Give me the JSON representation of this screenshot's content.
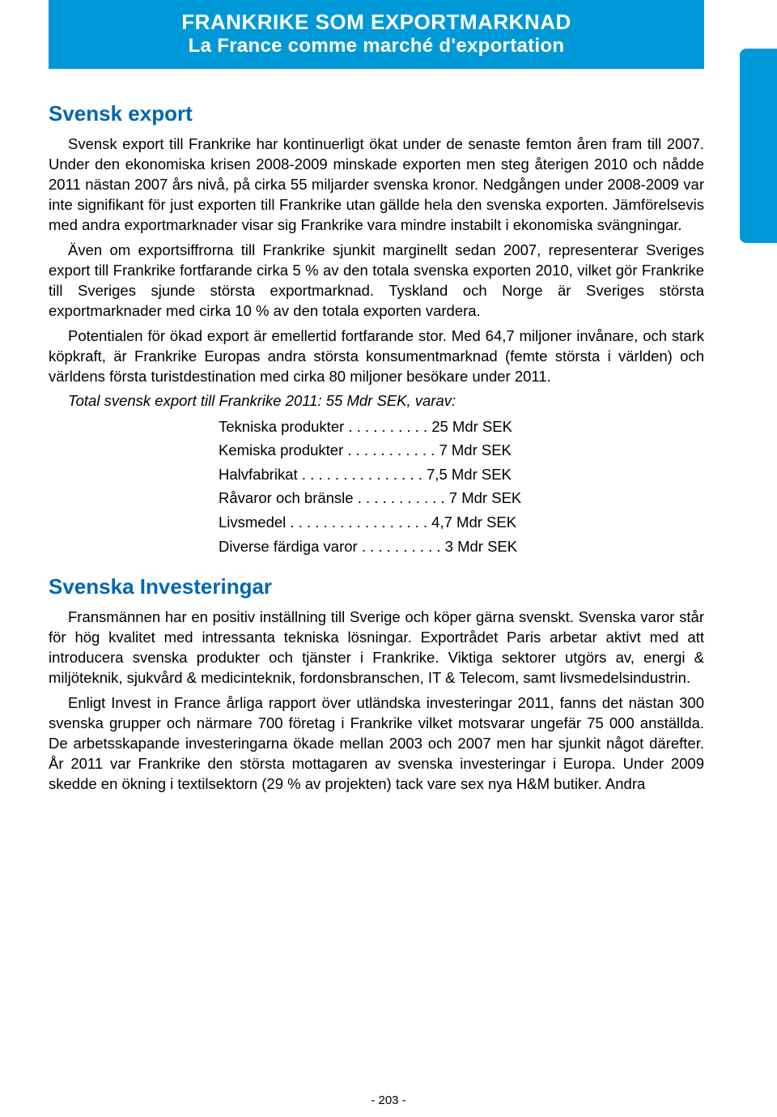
{
  "banner": {
    "title": "FRANKRIKE SOM EXPORTMARKNAD",
    "subtitle": "La France comme marché d'exportation"
  },
  "section1": {
    "heading": "Svensk export",
    "p1": "Svensk export till Frankrike har kontinuerligt ökat under de senaste femton åren fram till 2007. Under den ekonomiska krisen 2008-2009 minskade exporten men steg återigen 2010 och nådde 2011 nästan 2007 års nivå, på cirka 55 miljarder svenska kronor. Nedgången under 2008-2009 var inte signifikant för just exporten till Frankrike utan gällde hela den svenska exporten. Jämförelsevis med andra exportmarknader visar sig Frankrike vara mindre instabilt i ekonomiska svängningar.",
    "p2": "Även om exportsiffrorna till Frankrike sjunkit marginellt sedan 2007, representerar Sveriges export till Frankrike fortfarande cirka 5 % av den totala svenska exporten 2010, vilket gör Frankrike till Sveriges sjunde största exportmarknad. Tyskland och Norge är Sveriges största exportmarknader med cirka 10 % av den totala exporten vardera.",
    "p3": "Potentialen för ökad export är emellertid fortfarande stor. Med 64,7 miljoner invånare, och stark köpkraft, är Frankrike Europas andra största konsumentmarknad (femte största i världen) och världens första turistdestination med cirka 80 miljoner besökare under 2011.",
    "italic": "Total svensk export till Frankrike 2011: 55 Mdr SEK, varav:",
    "products": [
      "Tekniska produkter . . . . . . . . . . 25 Mdr SEK",
      "Kemiska produkter . . . . . . . . . . . 7 Mdr SEK",
      "Halvfabrikat . . . . . . . . . . . . . . . 7,5 Mdr SEK",
      "Råvaror och bränsle . . . . . . . . . . . 7 Mdr SEK",
      "Livsmedel . . . . . . . . . . . . . . . . . 4,7 Mdr SEK",
      "Diverse färdiga varor . . . . . . . . . . 3 Mdr SEK"
    ]
  },
  "section2": {
    "heading": "Svenska Investeringar",
    "p1": "Fransmännen har en positiv inställning till Sverige och köper gärna svenskt. Svenska varor står för hög kvalitet med intressanta tekniska lösningar. Exportrådet Paris arbetar aktivt med att introducera svenska produkter och tjänster i Frankrike. Viktiga sektorer utgörs av, energi & miljöteknik, sjukvård & medicinteknik, fordonsbranschen, IT & Telecom, samt livsmedelsindustrin.",
    "p2": "Enligt Invest in France årliga rapport över utländska investeringar 2011, fanns det nästan 300 svenska grupper och närmare 700 företag i Frankrike vilket motsvarar ungefär 75 000 anställda. De arbetsskapande investeringarna ökade mellan 2003 och 2007 men har sjunkit något därefter. År 2011 var Frankrike  den största mottagaren av svenska investeringar i Europa. Under 2009 skedde en ökning i textilsektorn (29 % av projekten) tack vare sex nya H&M butiker. Andra"
  },
  "pageNumber": "- 203 -"
}
